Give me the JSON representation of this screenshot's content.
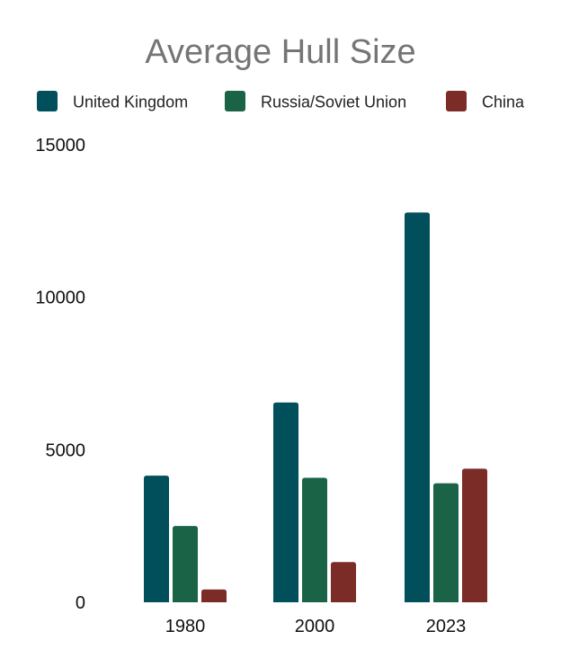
{
  "chart_data": {
    "type": "bar",
    "title": "Average Hull Size",
    "xlabel": "",
    "ylabel": "",
    "categories": [
      "1980",
      "2000",
      "2023"
    ],
    "series": [
      {
        "name": "United Kingdom",
        "color": "#004F5B",
        "values": [
          4150,
          6550,
          12780
        ]
      },
      {
        "name": "Russia/Soviet Union",
        "color": "#1B6346",
        "values": [
          2500,
          4080,
          3900
        ]
      },
      {
        "name": "China",
        "color": "#7B2C27",
        "values": [
          420,
          1320,
          4380
        ]
      }
    ],
    "ylim": [
      0,
      15000
    ],
    "yticks": [
      0,
      5000,
      10000,
      15000
    ],
    "ytick_labels": [
      "0",
      "5000",
      "10000",
      "15000"
    ],
    "grid": false,
    "legend_position": "top"
  }
}
